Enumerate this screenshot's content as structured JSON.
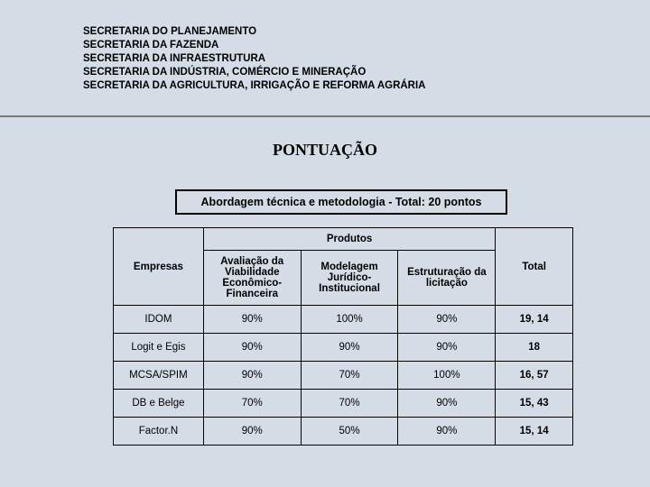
{
  "header": {
    "lines": [
      "SECRETARIA DO PLANEJAMENTO",
      "SECRETARIA DA FAZENDA",
      "SECRETARIA DA INFRAESTRUTURA",
      "SECRETARIA DA INDÚSTRIA, COMÉRCIO E MINERAÇÃO",
      "SECRETARIA DA AGRICULTURA, IRRIGAÇÃO E REFORMA AGRÁRIA"
    ]
  },
  "title": "PONTUAÇÃO",
  "subtitle": "Abordagem técnica e metodologia - Total: 20 pontos",
  "table": {
    "produtos_header": "Produtos",
    "empresas_header": "Empresas",
    "total_header": "Total",
    "product_cols": [
      "Avaliação da Viabilidade Econômico-Financeira",
      "Modelagem Jurídico-Institucional",
      "Estruturação da licitação"
    ],
    "rows": [
      {
        "label": "IDOM",
        "vals": [
          "90%",
          "100%",
          "90%"
        ],
        "total": "19, 14"
      },
      {
        "label": "Logit e Egis",
        "vals": [
          "90%",
          "90%",
          "90%"
        ],
        "total": "18"
      },
      {
        "label": "MCSA/SPIM",
        "vals": [
          "90%",
          "70%",
          "100%"
        ],
        "total": "16, 57"
      },
      {
        "label": "DB e Belge",
        "vals": [
          "70%",
          "70%",
          "90%"
        ],
        "total": "15, 43"
      },
      {
        "label": "Factor.N",
        "vals": [
          "90%",
          "50%",
          "90%"
        ],
        "total": "15, 14"
      }
    ]
  }
}
